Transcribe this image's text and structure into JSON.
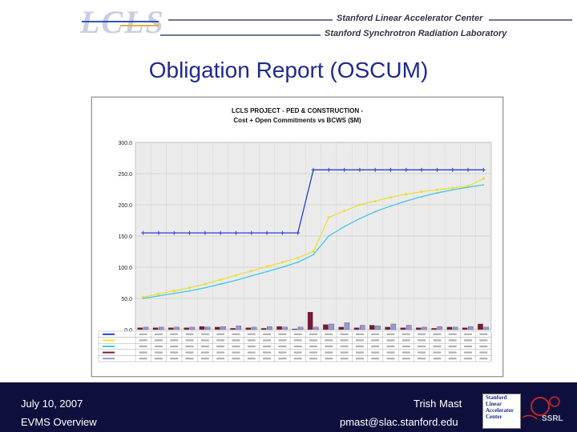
{
  "header": {
    "logo_text": "LCLS",
    "org_line1": "Stanford Linear Accelerator Center",
    "org_line2": "Stanford Synchrotron Radiation Laboratory"
  },
  "slide": {
    "title": "Obligation Report (OSCUM)"
  },
  "chart_data": {
    "type": "line",
    "title_line1": "LCLS PROJECT - PED & CONSTRUCTION -",
    "title_line2": "Cost + Open Commitments vs BCWS ($M)",
    "y_tick_labels": [
      "0.0",
      "50.0",
      "100.0",
      "150.0",
      "200.0",
      "250.0",
      "300.0"
    ],
    "ylim": [
      0,
      300
    ],
    "grid": true,
    "series": [
      {
        "color": "#2840c8",
        "values": [
          155,
          155,
          155,
          155,
          155,
          155,
          155,
          155,
          155,
          155,
          155,
          256,
          256,
          256,
          256,
          256,
          256,
          256,
          256,
          256,
          256,
          256,
          256
        ]
      },
      {
        "color": "#e8e040",
        "values": [
          52,
          57,
          62,
          67,
          73,
          80,
          87,
          94,
          101,
          108,
          115,
          125,
          180,
          190,
          200,
          206,
          212,
          217,
          221,
          224,
          227,
          230,
          242
        ]
      },
      {
        "color": "#40c8e0",
        "values": [
          50,
          54,
          58,
          62,
          67,
          73,
          79,
          86,
          93,
          100,
          108,
          120,
          150,
          165,
          178,
          189,
          198,
          206,
          213,
          219,
          224,
          228,
          232
        ]
      },
      {
        "color": "#7a1838",
        "values": [
          3,
          3,
          3,
          3,
          5,
          4,
          2,
          3,
          2,
          5,
          1,
          28,
          8,
          4,
          3,
          7,
          4,
          3,
          3,
          2,
          4,
          3,
          9
        ]
      },
      {
        "color": "#9a96d8",
        "values": [
          4,
          4,
          4,
          4,
          4,
          5,
          6,
          4,
          5,
          4,
          4,
          4,
          9,
          11,
          7,
          6,
          9,
          7,
          4,
          5,
          4,
          5,
          4
        ]
      }
    ],
    "table_row_count": 5
  },
  "footer": {
    "date": "July 10, 2007",
    "subject": "EVMS Overview",
    "author": "Trish Mast",
    "email": "pmast@slac.stanford.edu",
    "badge_lines": [
      "Stanford",
      "Linear",
      "Accelerator",
      "Center"
    ],
    "badge_ssrl": "SSRL"
  }
}
